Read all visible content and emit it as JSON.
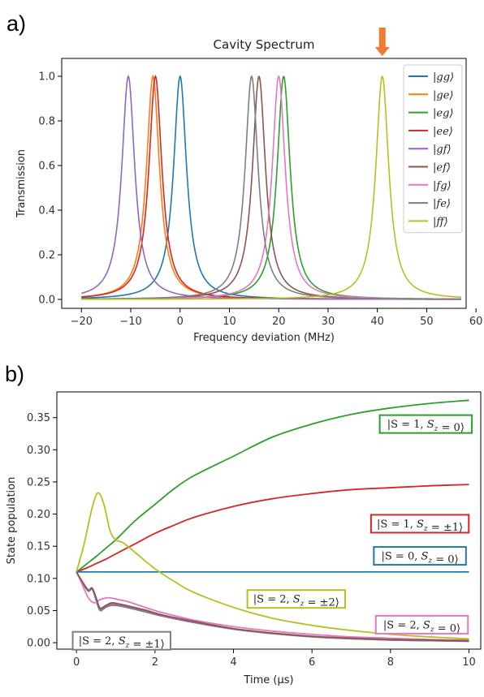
{
  "panels": {
    "a_label": "a)",
    "b_label": "b)"
  },
  "colors": {
    "blue": "#1f77b4",
    "orange": "#ff7f0e",
    "green": "#2ca02c",
    "red": "#d62728",
    "purple": "#9467bd",
    "brown": "#8c564b",
    "pink": "#e377c2",
    "gray": "#7f7f7f",
    "olive": "#bcbd22",
    "marker": "#f07a2e"
  },
  "chart_data": [
    {
      "type": "line",
      "title": "Cavity Spectrum",
      "xlabel": "Frequency deviation (MHz)",
      "ylabel": "Transmission",
      "xlim": [
        -24,
        58
      ],
      "ylim": [
        -0.04,
        1.08
      ],
      "xticks": [
        -20,
        -10,
        0,
        10,
        20,
        30,
        40,
        50,
        60
      ],
      "yticks": [
        0.0,
        0.2,
        0.4,
        0.6,
        0.8,
        1.0
      ],
      "ytick_labels": [
        "0.0",
        "0.2",
        "0.4",
        "0.6",
        "0.8",
        "1.0"
      ],
      "x_range": [
        -20,
        57
      ],
      "linewidth_mhz": 1.6,
      "legend_position": "top-right",
      "marker_arrow": {
        "x": 41,
        "color": "orange"
      },
      "series": [
        {
          "name": "|gg⟩",
          "color": "#1f77b4",
          "center": 0,
          "peak": 1.0
        },
        {
          "name": "|ge⟩",
          "color": "#ff7f0e",
          "center": -5.5,
          "peak": 1.0
        },
        {
          "name": "|eg⟩",
          "color": "#2ca02c",
          "center": 21,
          "peak": 1.0
        },
        {
          "name": "|ee⟩",
          "color": "#d62728",
          "center": -5,
          "peak": 1.0
        },
        {
          "name": "|gf⟩",
          "color": "#9467bd",
          "center": -10.5,
          "peak": 1.0
        },
        {
          "name": "|ef⟩",
          "color": "#8c564b",
          "center": 16,
          "peak": 1.0
        },
        {
          "name": "|fg⟩",
          "color": "#e377c2",
          "center": 20,
          "peak": 1.0
        },
        {
          "name": "|fe⟩",
          "color": "#7f7f7f",
          "center": 14.5,
          "peak": 1.0
        },
        {
          "name": "|ff⟩",
          "color": "#bcbd22",
          "center": 41,
          "peak": 1.0
        }
      ]
    },
    {
      "type": "line",
      "xlabel": "Time (μs)",
      "ylabel": "State population",
      "xlim": [
        -0.5,
        10.3
      ],
      "ylim": [
        -0.01,
        0.39
      ],
      "xticks": [
        0,
        2,
        4,
        6,
        8,
        10
      ],
      "yticks": [
        0.0,
        0.05,
        0.1,
        0.15,
        0.2,
        0.25,
        0.3,
        0.35
      ],
      "ytick_labels": [
        "0.00",
        "0.05",
        "0.10",
        "0.15",
        "0.20",
        "0.25",
        "0.30",
        "0.35"
      ],
      "series": [
        {
          "name": "|S = 1, Sz = 0⟩",
          "color": "#2ca02c",
          "x": [
            0,
            0.25,
            0.5,
            0.75,
            1,
            1.5,
            2,
            2.5,
            3,
            4,
            5,
            6,
            7,
            8,
            9,
            10
          ],
          "y": [
            0.11,
            0.122,
            0.134,
            0.147,
            0.16,
            0.19,
            0.215,
            0.24,
            0.26,
            0.29,
            0.32,
            0.34,
            0.355,
            0.365,
            0.372,
            0.377
          ]
        },
        {
          "name": "|S = 1, Sz = ±1⟩",
          "color": "#d62728",
          "x": [
            0,
            0.25,
            0.5,
            0.75,
            1,
            1.5,
            2,
            2.5,
            3,
            4,
            5,
            6,
            7,
            8,
            9,
            10
          ],
          "y": [
            0.11,
            0.116,
            0.123,
            0.13,
            0.138,
            0.154,
            0.17,
            0.183,
            0.195,
            0.212,
            0.224,
            0.232,
            0.238,
            0.241,
            0.244,
            0.246
          ]
        },
        {
          "name": "|S = 0, Sz = 0⟩",
          "color": "#1f77b4",
          "x": [
            0,
            10
          ],
          "y": [
            0.11,
            0.11
          ]
        },
        {
          "name": "|S = 2, Sz = ±2⟩",
          "color": "#bcbd22",
          "x": [
            0,
            0.2,
            0.4,
            0.55,
            0.7,
            0.85,
            1,
            1.2,
            1.5,
            2,
            2.5,
            3,
            4,
            5,
            6,
            7,
            8,
            9,
            10
          ],
          "y": [
            0.11,
            0.155,
            0.21,
            0.233,
            0.215,
            0.175,
            0.16,
            0.155,
            0.14,
            0.115,
            0.095,
            0.078,
            0.055,
            0.038,
            0.027,
            0.019,
            0.013,
            0.009,
            0.006
          ]
        },
        {
          "name": "|S = 2, Sz = 0⟩",
          "color": "#e377c2",
          "x": [
            0,
            0.15,
            0.3,
            0.45,
            0.6,
            0.8,
            1,
            1.3,
            1.6,
            2,
            2.5,
            3,
            4,
            5,
            6,
            7,
            8,
            9,
            10
          ],
          "y": [
            0.11,
            0.09,
            0.07,
            0.062,
            0.067,
            0.07,
            0.068,
            0.064,
            0.058,
            0.05,
            0.042,
            0.035,
            0.025,
            0.018,
            0.013,
            0.009,
            0.007,
            0.005,
            0.004
          ]
        },
        {
          "name": "|S = 2, Sz = ±1⟩",
          "color": "#8c564b",
          "x": [
            0,
            0.15,
            0.3,
            0.4,
            0.5,
            0.6,
            0.75,
            0.9,
            1.1,
            1.4,
            1.8,
            2.2,
            3,
            4,
            5,
            6,
            7,
            8,
            9,
            10
          ],
          "y": [
            0.11,
            0.095,
            0.082,
            0.085,
            0.07,
            0.054,
            0.058,
            0.062,
            0.06,
            0.056,
            0.05,
            0.043,
            0.033,
            0.022,
            0.015,
            0.01,
            0.007,
            0.005,
            0.004,
            0.003
          ]
        }
      ],
      "extra_lines": [
        {
          "color": "#9467bd",
          "x": [
            0,
            0.15,
            0.3,
            0.4,
            0.5,
            0.6,
            0.75,
            0.9,
            1.1,
            1.4,
            1.8,
            2.2,
            3,
            4,
            5,
            6,
            7,
            8,
            9,
            10
          ],
          "y": [
            0.11,
            0.093,
            0.08,
            0.083,
            0.066,
            0.05,
            0.055,
            0.058,
            0.057,
            0.053,
            0.047,
            0.041,
            0.031,
            0.021,
            0.014,
            0.009,
            0.006,
            0.004,
            0.003,
            0.002
          ]
        },
        {
          "color": "#7f7f7f",
          "x": [
            0,
            0.15,
            0.3,
            0.4,
            0.5,
            0.6,
            0.75,
            0.9,
            1.1,
            1.4,
            1.8,
            2.2,
            3,
            4,
            5,
            6,
            7,
            8,
            9,
            10
          ],
          "y": [
            0.11,
            0.094,
            0.081,
            0.084,
            0.068,
            0.052,
            0.056,
            0.06,
            0.058,
            0.054,
            0.048,
            0.042,
            0.032,
            0.021,
            0.014,
            0.009,
            0.006,
            0.004,
            0.003,
            0.002
          ]
        }
      ],
      "annotations": [
        {
          "text": "|S = 1, Sz = 0⟩",
          "box_color": "#2ca02c",
          "x": 8.9,
          "y": 0.34
        },
        {
          "text": "|S = 1, Sz = ±1⟩",
          "box_color": "#d62728",
          "x": 8.75,
          "y": 0.185
        },
        {
          "text": "|S = 0, Sz = 0⟩",
          "box_color": "#1f77b4",
          "x": 8.75,
          "y": 0.135
        },
        {
          "text": "|S = 2, Sz = ±2⟩",
          "box_color": "#bcbd22",
          "x": 5.6,
          "y": 0.068
        },
        {
          "text": "|S = 2, Sz = 0⟩",
          "box_color": "#e377c2",
          "x": 8.8,
          "y": 0.028
        },
        {
          "text": "|S = 2, Sz = ±1⟩",
          "box_color": "#7f7f7f",
          "x": 1.15,
          "y": 0.003
        }
      ]
    }
  ]
}
